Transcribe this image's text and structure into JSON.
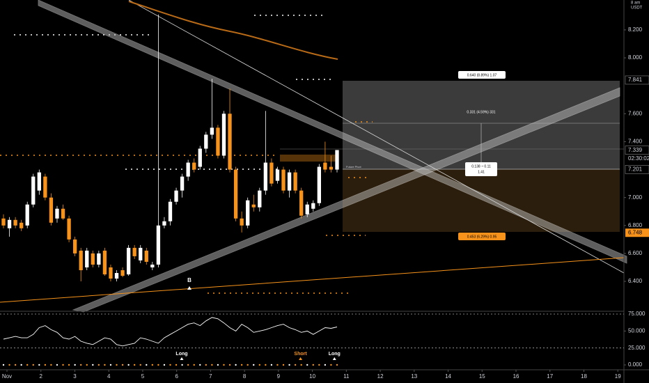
{
  "chart_data": {
    "type": "candlestick",
    "up_color": "#ffffff",
    "down_color": "#f7931a",
    "ylim": [
      6.181,
      8.414
    ],
    "yticks": [
      {
        "value": 8.2,
        "label": "8.200"
      },
      {
        "value": 8.0,
        "label": "8.000"
      },
      {
        "value": 7.6,
        "label": "7.600"
      },
      {
        "value": 7.4,
        "label": "7.400"
      },
      {
        "value": 7.0,
        "label": "7.000"
      },
      {
        "value": 6.8,
        "label": "6.800"
      },
      {
        "value": 6.6,
        "label": "6.600"
      },
      {
        "value": 6.4,
        "label": "6.400"
      }
    ],
    "xlim": [
      0.795,
      19.18
    ],
    "xticks": [
      {
        "value": 1,
        "label": "Nov"
      },
      2,
      3,
      4,
      5,
      6,
      7,
      8,
      9,
      10,
      11,
      12,
      13,
      14,
      15,
      16,
      17,
      18,
      19
    ],
    "axis_top_labels": [
      "8 am",
      "USDT"
    ],
    "price_tags": [
      {
        "value": 7.841,
        "label": "7.841"
      },
      {
        "value": 7.339,
        "label": "7.339"
      },
      {
        "value": 7.201,
        "label": "7.201"
      },
      {
        "value": 6.748,
        "label": "6.748"
      }
    ],
    "countdown": "02:30:02",
    "candles": [
      [
        6.85,
        6.88,
        6.78,
        6.8
      ],
      [
        6.78,
        6.86,
        6.72,
        6.84
      ],
      [
        6.84,
        6.86,
        6.78,
        6.8
      ],
      [
        6.82,
        6.84,
        6.76,
        6.78
      ],
      [
        6.8,
        6.97,
        6.78,
        6.95
      ],
      [
        6.95,
        7.17,
        6.93,
        7.15
      ],
      [
        7.05,
        7.2,
        7.02,
        7.18
      ],
      [
        7.15,
        7.17,
        6.98,
        7.0
      ],
      [
        7.0,
        7.03,
        6.8,
        6.82
      ],
      [
        6.85,
        6.94,
        6.82,
        6.92
      ],
      [
        6.92,
        6.95,
        6.84,
        6.85
      ],
      [
        6.85,
        6.87,
        6.68,
        6.7
      ],
      [
        6.7,
        6.72,
        6.58,
        6.6
      ],
      [
        6.62,
        6.64,
        6.4,
        6.48
      ],
      [
        6.5,
        6.64,
        6.48,
        6.62
      ],
      [
        6.6,
        6.62,
        6.5,
        6.52
      ],
      [
        6.52,
        6.62,
        6.5,
        6.6
      ],
      [
        6.62,
        6.64,
        6.44,
        6.45
      ],
      [
        6.5,
        6.52,
        6.4,
        6.42
      ],
      [
        6.42,
        6.48,
        6.4,
        6.46
      ],
      [
        6.48,
        6.5,
        6.43,
        6.44
      ],
      [
        6.45,
        6.66,
        6.44,
        6.64
      ],
      [
        6.64,
        6.66,
        6.56,
        6.58
      ],
      [
        6.55,
        6.66,
        6.53,
        6.64
      ],
      [
        6.62,
        6.64,
        6.52,
        6.54
      ],
      [
        6.5,
        6.54,
        6.48,
        6.52
      ],
      [
        6.52,
        8.31,
        6.5,
        6.8
      ],
      [
        6.8,
        6.86,
        6.78,
        6.83
      ],
      [
        6.83,
        6.99,
        6.8,
        6.97
      ],
      [
        6.97,
        7.07,
        6.95,
        7.05
      ],
      [
        7.05,
        7.17,
        7.0,
        7.15
      ],
      [
        7.15,
        7.27,
        7.12,
        7.25
      ],
      [
        7.25,
        7.28,
        7.18,
        7.2
      ],
      [
        7.22,
        7.37,
        7.2,
        7.35
      ],
      [
        7.35,
        7.47,
        7.32,
        7.45
      ],
      [
        7.45,
        7.85,
        7.42,
        7.5
      ],
      [
        7.5,
        7.52,
        7.28,
        7.3
      ],
      [
        7.3,
        7.62,
        7.28,
        7.6
      ],
      [
        7.6,
        7.78,
        7.18,
        7.2
      ],
      [
        7.2,
        7.22,
        6.83,
        6.85
      ],
      [
        6.85,
        6.9,
        6.75,
        6.8
      ],
      [
        6.8,
        7.0,
        6.78,
        6.98
      ],
      [
        6.95,
        7.02,
        6.9,
        6.93
      ],
      [
        6.93,
        7.07,
        6.9,
        7.05
      ],
      [
        7.05,
        7.62,
        7.02,
        7.25
      ],
      [
        7.25,
        7.28,
        7.08,
        7.1
      ],
      [
        7.12,
        7.22,
        7.1,
        7.2
      ],
      [
        7.2,
        7.22,
        7.03,
        7.05
      ],
      [
        7.05,
        7.2,
        7.0,
        7.18
      ],
      [
        7.18,
        7.2,
        7.03,
        7.05
      ],
      [
        7.05,
        7.07,
        6.85,
        6.87
      ],
      [
        6.88,
        6.97,
        6.86,
        6.95
      ],
      [
        6.92,
        6.98,
        6.9,
        6.96
      ],
      [
        6.96,
        7.24,
        6.94,
        7.22
      ],
      [
        7.25,
        7.4,
        7.18,
        7.2
      ],
      [
        7.22,
        7.3,
        7.18,
        7.2
      ],
      [
        7.2,
        7.34,
        7.18,
        7.34
      ]
    ],
    "annotations": {
      "target": "0.640 (8.89%) 1.07",
      "mid": "0.331 (4.59%) 331",
      "center_line1": "0.138 ~ 0.11",
      "center_line2": "1.41",
      "stop": "0.453 (6.29%) 0.95",
      "pivot": "Future Pivot",
      "marker": "B"
    },
    "signals": [
      {
        "label": "Long",
        "day": 6.15
      },
      {
        "label": "Short",
        "day": 9.65
      },
      {
        "label": "Long",
        "day": 10.65
      }
    ],
    "oscillator": {
      "ylim": [
        -8.2,
        78.1
      ],
      "yticks": [
        {
          "value": 75,
          "label": "75.000"
        },
        {
          "value": 50,
          "label": "50.000"
        },
        {
          "value": 25,
          "label": "25.000"
        },
        {
          "value": 0,
          "label": "0.000"
        }
      ],
      "color": "#ffffff",
      "values": [
        38,
        40,
        42,
        40,
        40,
        45,
        55,
        58,
        52,
        48,
        40,
        38,
        42,
        35,
        32,
        30,
        35,
        40,
        38,
        30,
        28,
        30,
        32,
        40,
        38,
        35,
        32,
        40,
        45,
        50,
        55,
        60,
        62,
        58,
        65,
        70,
        68,
        62,
        55,
        50,
        60,
        55,
        48,
        50,
        52,
        55,
        58,
        60,
        55,
        52,
        48,
        50,
        45,
        50,
        55,
        54,
        56
      ]
    }
  }
}
